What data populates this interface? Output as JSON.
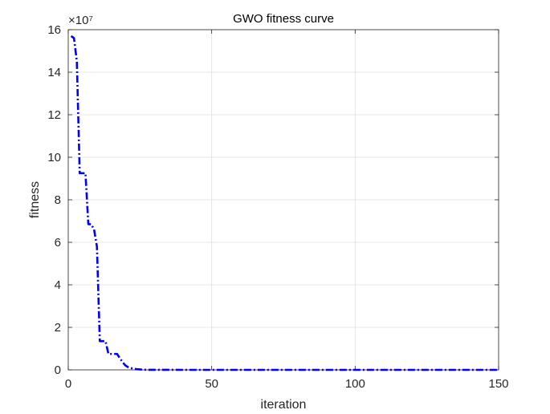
{
  "chart_data": {
    "type": "line",
    "title": "GWO fitness curve",
    "xlabel": "iteration",
    "ylabel": "fitness",
    "y_exponent_label": "×10⁷",
    "xlim": [
      0,
      150
    ],
    "ylim": [
      0,
      16
    ],
    "xticks": [
      "0",
      "50",
      "100",
      "150"
    ],
    "yticks": [
      "0",
      "2",
      "4",
      "6",
      "8",
      "10",
      "12",
      "14",
      "16"
    ],
    "grid": true,
    "legend": "none",
    "series": [
      {
        "color": "#0000ff",
        "line_style": "dash-dot",
        "x": [
          1,
          2,
          3,
          4,
          5,
          6,
          7,
          8,
          9,
          10,
          11,
          12,
          13,
          14,
          15,
          16,
          17,
          18,
          19,
          20,
          21,
          22,
          23,
          24,
          25,
          26,
          27,
          28,
          29,
          30,
          40,
          50,
          60,
          70,
          80,
          90,
          100,
          110,
          120,
          130,
          140,
          150
        ],
        "y": [
          15.7,
          15.6,
          14.5,
          9.25,
          9.25,
          9.25,
          6.85,
          6.85,
          6.6,
          5.8,
          1.35,
          1.35,
          1.35,
          0.75,
          0.75,
          0.75,
          0.75,
          0.55,
          0.35,
          0.2,
          0.12,
          0.08,
          0.05,
          0.03,
          0.02,
          0.01,
          0.005,
          0.003,
          0.002,
          0.001,
          0.0005,
          0.0003,
          0.0002,
          0.0001,
          0.0001,
          0.0001,
          0.0001,
          0.0001,
          0.0001,
          0.0001,
          0.0001,
          0.0001
        ]
      }
    ]
  }
}
